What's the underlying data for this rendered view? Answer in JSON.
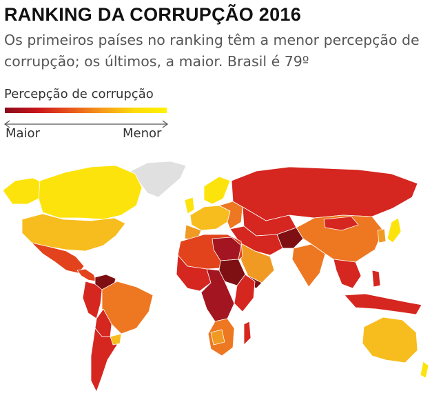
{
  "title": "RANKING DA CORRUPÇÃO 2016",
  "subtitle": "Os primeiros países no ranking têm a menor percepção de corrupção; os últimos, a maior. Brasil é 79º",
  "legend": {
    "title": "Percepção de corrupção",
    "min_label": "Maior",
    "max_label": "Menor",
    "gradient_colors": [
      "#8a0a1b",
      "#c8151b",
      "#e8531b",
      "#f59a1a",
      "#fddb0a",
      "#fff200"
    ]
  },
  "colors": {
    "no_data": "#e0e0e0",
    "very_low": "#fde30c",
    "low": "#f7bd1e",
    "mid_low": "#f19a23",
    "mid": "#ee7722",
    "mid_high": "#e2431c",
    "high": "#d52620",
    "very_high": "#a31621",
    "extreme": "#7e1013"
  }
}
